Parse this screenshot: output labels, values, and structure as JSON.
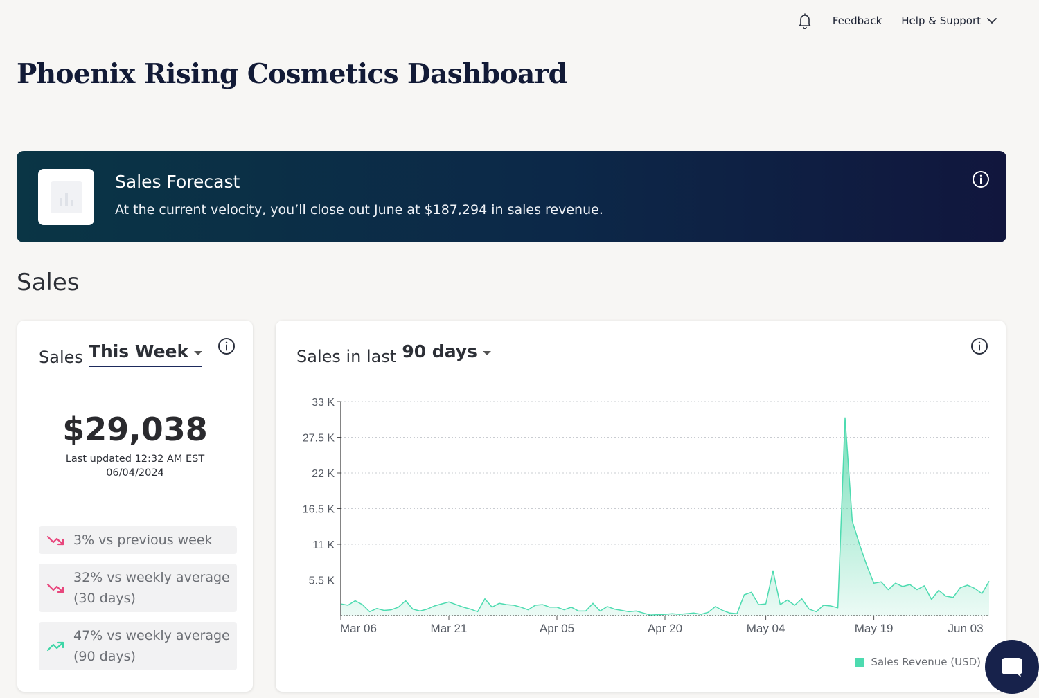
{
  "topbar": {
    "feedback_label": "Feedback",
    "help_label": "Help & Support"
  },
  "page_title": "Phoenix Rising Cosmetics Dashboard",
  "forecast": {
    "title": "Sales Forecast",
    "text": "At the current velocity, you’ll close out June at $187,294 in sales revenue."
  },
  "section_title": "Sales",
  "weekly_card": {
    "prefix": "Sales",
    "period_selected": "This Week",
    "value": "$29,038",
    "updated_line1": "Last updated 12:32 AM EST",
    "updated_line2": "06/04/2024",
    "stats": [
      {
        "text": "3% vs previous week",
        "trend": "down"
      },
      {
        "text": "32% vs weekly average (30 days)",
        "trend": "down"
      },
      {
        "text": "47% vs weekly average (90 days)",
        "trend": "up"
      }
    ]
  },
  "chart_card": {
    "prefix": "Sales in last",
    "period_selected": "90 days",
    "legend_label": "Sales Revenue (USD)"
  },
  "colors": {
    "accent": "#4ddbb0",
    "down": "#e8477d",
    "up": "#3ed6a6",
    "banner_start": "#0a3545",
    "banner_end": "#11163d"
  },
  "chart_data": {
    "type": "area",
    "title": "",
    "xlabel": "",
    "ylabel": "",
    "ylim": [
      0,
      33000
    ],
    "yticks": [
      5500,
      11000,
      16500,
      22000,
      27500,
      33000
    ],
    "ytick_labels": [
      "5.5 K",
      "11 K",
      "16.5 K",
      "22 K",
      "27.5 K",
      "33 K"
    ],
    "xtick_labels": [
      "Mar 06",
      "Mar 21",
      "Apr 05",
      "Apr 20",
      "May 04",
      "May 19",
      "Jun 03"
    ],
    "xtick_day_index": [
      0,
      15,
      30,
      45,
      59,
      74,
      89
    ],
    "x_start": "2024-03-06",
    "series": [
      {
        "name": "Sales Revenue (USD)",
        "values": [
          1800,
          1600,
          2300,
          1700,
          600,
          1100,
          800,
          900,
          1300,
          2300,
          1000,
          700,
          1000,
          1500,
          1800,
          2100,
          1700,
          1300,
          1000,
          600,
          2600,
          1300,
          1900,
          1700,
          1600,
          1300,
          900,
          1600,
          1700,
          1300,
          1300,
          900,
          1300,
          700,
          700,
          1900,
          700,
          1400,
          1000,
          800,
          600,
          700,
          400,
          100,
          150,
          200,
          300,
          200,
          300,
          400,
          200,
          500,
          1400,
          800,
          400,
          300,
          3200,
          3600,
          1700,
          1800,
          6900,
          1700,
          2400,
          1600,
          2600,
          1000,
          600,
          1600,
          1500,
          1200,
          30500,
          14600,
          11000,
          7800,
          5000,
          5200,
          4000,
          5000,
          4500,
          4800,
          4000,
          4600,
          2500,
          3900,
          3000,
          2800,
          4300,
          4700,
          4200,
          3400,
          5300
        ]
      }
    ],
    "grid": true,
    "legend_position": "bottom-right"
  }
}
